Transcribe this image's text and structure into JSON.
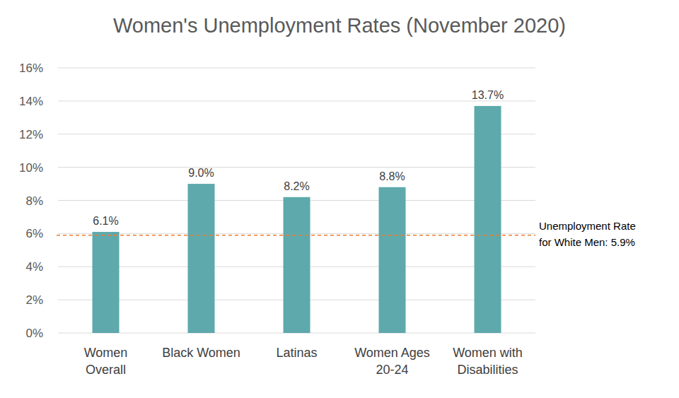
{
  "chart_data": {
    "type": "bar",
    "title": "Women's Unemployment Rates (November 2020)",
    "categories": [
      "Women Overall",
      "Black Women",
      "Latinas",
      "Women Ages 20-24",
      "Women with Disabilities"
    ],
    "values": [
      6.1,
      9.0,
      8.2,
      8.8,
      13.7
    ],
    "value_labels": [
      "6.1%",
      "9.0%",
      "8.2%",
      "8.8%",
      "13.7%"
    ],
    "data_labels": true,
    "color": "#5ea9ac",
    "ylim": [
      0,
      16
    ],
    "yticks": [
      {
        "value": 0,
        "label": "0%"
      },
      {
        "value": 2,
        "label": "2%"
      },
      {
        "value": 4,
        "label": "4%"
      },
      {
        "value": 6,
        "label": "6%"
      },
      {
        "value": 8,
        "label": "8%"
      },
      {
        "value": 10,
        "label": "10%"
      },
      {
        "value": 12,
        "label": "12%"
      },
      {
        "value": 14,
        "label": "14%"
      },
      {
        "value": 16,
        "label": "16%"
      }
    ],
    "grid": true,
    "reference_line": {
      "value": 5.9,
      "label": "Unemployment Rate for White Men: 5.9%",
      "color": "#ed7d31",
      "line_style": "dashed"
    }
  }
}
